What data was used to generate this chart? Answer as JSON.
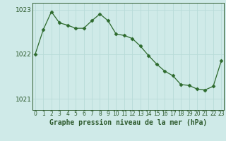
{
  "x": [
    0,
    1,
    2,
    3,
    4,
    5,
    6,
    7,
    8,
    9,
    10,
    11,
    12,
    13,
    14,
    15,
    16,
    17,
    18,
    19,
    20,
    21,
    22,
    23
  ],
  "y": [
    1022.0,
    1022.55,
    1022.95,
    1022.7,
    1022.65,
    1022.58,
    1022.58,
    1022.75,
    1022.9,
    1022.75,
    1022.45,
    1022.42,
    1022.35,
    1022.18,
    1021.97,
    1021.78,
    1021.62,
    1021.52,
    1021.32,
    1021.3,
    1021.22,
    1021.2,
    1021.28,
    1021.85
  ],
  "line_color": "#2d6a2d",
  "marker": "D",
  "marker_size": 2.5,
  "background_color": "#cfeae8",
  "grid_color": "#b8dbd8",
  "xlabel": "Graphe pression niveau de la mer (hPa)",
  "xlabel_fontsize": 7.0,
  "yticks": [
    1021,
    1022,
    1023
  ],
  "xtick_labels": [
    "0",
    "1",
    "2",
    "3",
    "4",
    "5",
    "6",
    "7",
    "8",
    "9",
    "10",
    "11",
    "12",
    "13",
    "14",
    "15",
    "16",
    "17",
    "18",
    "19",
    "20",
    "21",
    "22",
    "23"
  ],
  "ylim": [
    1020.75,
    1023.15
  ],
  "xlim": [
    -0.3,
    23.3
  ],
  "tick_color": "#2d5a2d",
  "ytick_fontsize": 6.5,
  "xtick_fontsize": 5.5,
  "border_color": "#2d5a2d",
  "linewidth": 0.9
}
